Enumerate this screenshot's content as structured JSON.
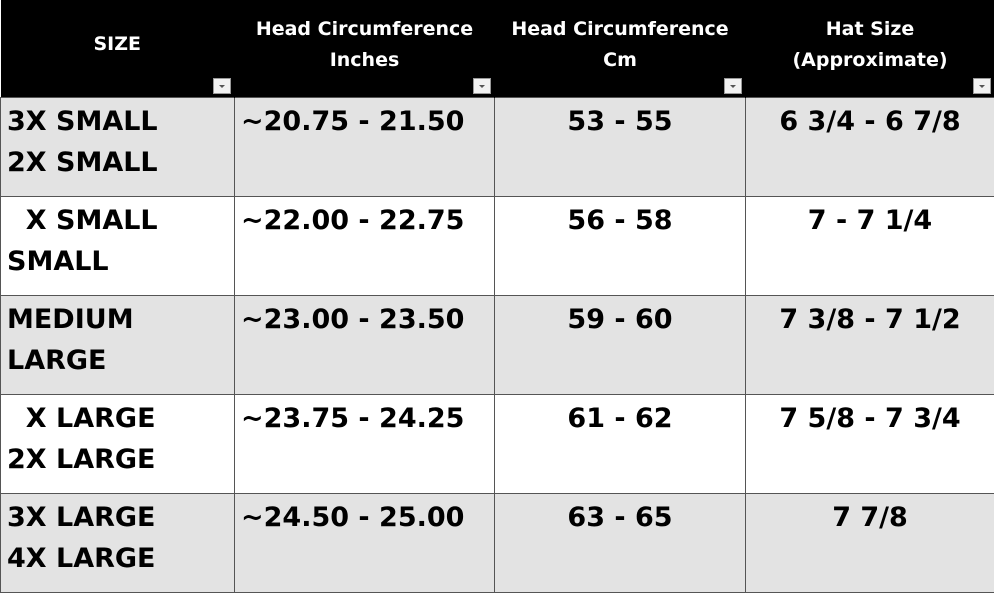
{
  "headers": [
    {
      "lines": [
        "SIZE"
      ]
    },
    {
      "lines": [
        "Head Circumference",
        "Inches"
      ]
    },
    {
      "lines": [
        "Head Circumference",
        "Cm"
      ]
    },
    {
      "lines": [
        "Hat Size",
        "(Approximate)"
      ]
    }
  ],
  "rows": [
    {
      "size": [
        "3X SMALL",
        "2X SMALL"
      ],
      "inches": "~20.75 - 21.50",
      "cm": "53 - 55",
      "hat": "6 3/4 - 6 7/8"
    },
    {
      "size": [
        "  X SMALL",
        "SMALL"
      ],
      "inches": "~22.00 - 22.75",
      "cm": "56 - 58",
      "hat": "7 - 7 1/4"
    },
    {
      "size": [
        "MEDIUM",
        "LARGE"
      ],
      "inches": "~23.00 - 23.50",
      "cm": "59 - 60",
      "hat": "7 3/8 - 7 1/2"
    },
    {
      "size": [
        "  X LARGE",
        "2X LARGE"
      ],
      "inches": "~23.75 - 24.25",
      "cm": "61 - 62",
      "hat": "7 5/8 - 7 3/4"
    },
    {
      "size": [
        "3X LARGE",
        "4X LARGE"
      ],
      "inches": "~24.50 - 25.00",
      "cm": "63 - 65",
      "hat": "7 7/8"
    }
  ],
  "colors": {
    "header_bg": "#000000",
    "header_text": "#ffffff",
    "row_alt": "#e3e3e3"
  },
  "icons": {
    "filter": "dropdown-filter-icon"
  }
}
